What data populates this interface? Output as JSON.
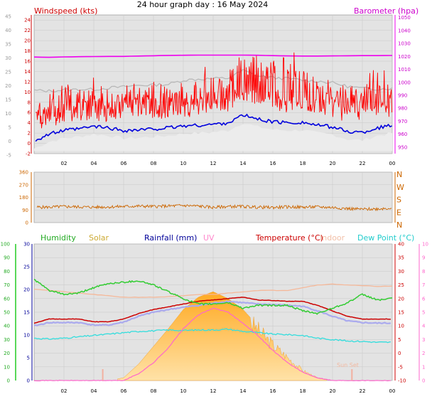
{
  "page": {
    "title": "24 hour graph day : 16 May 2024",
    "sunset_label": "Sun Set"
  },
  "x_ticks": [
    "02",
    "04",
    "06",
    "08",
    "10",
    "12",
    "14",
    "16",
    "18",
    "20",
    "22",
    "00"
  ],
  "colors": {
    "wind": "#ff0000",
    "wind_avg": "#0000dd",
    "barometer": "#ee00ee",
    "direction": "#cc6600",
    "humidity": "#33cc33",
    "solar": "#ffaa33",
    "rain": "#000099",
    "uv": "#ff66cc",
    "temp": "#cc0000",
    "indoor": "#f5b899",
    "dew": "#33dddd",
    "apparent": "#aaaaee"
  },
  "chart_data": [
    {
      "type": "line",
      "title": "24 hour graph day : 16 May 2024",
      "labels": {
        "left": "Windspeed (kts)",
        "right": "Barometer (hpa)"
      },
      "left_axis_outer_ticks": [
        "-5",
        "0",
        "5",
        "10",
        "15",
        "20",
        "25",
        "30",
        "35",
        "40",
        "45"
      ],
      "left_axis_inner_ticks": [
        "-2",
        "0",
        "2",
        "4",
        "6",
        "8",
        "10",
        "12",
        "14",
        "16",
        "18",
        "20",
        "22",
        "24"
      ],
      "right_axis_ticks": [
        "950",
        "960",
        "970",
        "980",
        "990",
        "1000",
        "1010",
        "1020",
        "1030",
        "1040",
        "1050"
      ],
      "ylim_wind": [
        -2,
        25
      ],
      "ylim_baro": [
        945,
        1052
      ],
      "x": [
        0,
        1,
        2,
        3,
        4,
        5,
        6,
        7,
        8,
        9,
        10,
        11,
        12,
        13,
        14,
        15,
        16,
        17,
        18,
        19,
        20,
        21,
        22,
        23,
        24
      ],
      "series": [
        {
          "name": "Windspeed",
          "values": [
            4,
            6,
            7,
            7,
            7,
            7,
            8,
            8,
            7,
            8,
            8,
            8,
            9,
            9,
            11,
            10,
            9,
            9,
            9,
            9,
            8,
            7,
            7,
            8,
            8
          ]
        },
        {
          "name": "Windspeed avg",
          "values": [
            0.5,
            1.8,
            2.5,
            2.8,
            3.3,
            3.0,
            2.5,
            2.6,
            2.8,
            3.0,
            3.4,
            3.5,
            3.7,
            4.0,
            5.5,
            4.7,
            4.2,
            4.0,
            4.1,
            3.5,
            3.2,
            2.3,
            2.1,
            3.0,
            3.5
          ]
        },
        {
          "name": "Gust",
          "values": [
            6,
            10,
            12,
            11,
            11,
            10,
            10,
            11,
            12,
            11,
            12,
            13,
            13,
            14,
            18,
            16,
            16,
            18,
            15,
            12,
            11,
            12,
            10,
            16,
            12
          ]
        },
        {
          "name": "Barometer",
          "values": [
            1019.5,
            1019.3,
            1019.6,
            1019.8,
            1019.9,
            1020.0,
            1020.0,
            1020.3,
            1020.5,
            1020.8,
            1020.9,
            1021.0,
            1021.0,
            1021.0,
            1021.0,
            1020.9,
            1020.6,
            1020.4,
            1020.3,
            1020.3,
            1020.4,
            1020.5,
            1020.6,
            1020.6,
            1020.7
          ]
        },
        {
          "name": "Cloud base",
          "values": [
            10.3,
            10.2,
            10.4,
            10.5,
            10.5,
            10.8,
            11.0,
            11.3,
            11.4,
            11.5,
            12.3,
            12.5,
            12.6,
            12.7,
            14.2,
            13.1,
            12.8,
            12.6,
            12.3,
            12.1,
            11.8,
            11.1,
            10.7,
            10.6,
            10.7
          ]
        }
      ]
    },
    {
      "type": "line",
      "labels": {
        "right": [
          "N",
          "W",
          "S",
          "E",
          "N"
        ]
      },
      "left_axis_ticks": [
        "0",
        "90",
        "180",
        "270",
        "360"
      ],
      "ylim": [
        0,
        360
      ],
      "x": [
        0,
        1,
        2,
        3,
        4,
        5,
        6,
        7,
        8,
        9,
        10,
        11,
        12,
        13,
        14,
        15,
        16,
        17,
        18,
        19,
        20,
        21,
        22,
        23,
        24
      ],
      "series": [
        {
          "name": "Wind direction",
          "values": [
            110,
            110,
            115,
            112,
            110,
            112,
            115,
            118,
            115,
            118,
            122,
            118,
            108,
            115,
            115,
            110,
            108,
            112,
            110,
            112,
            108,
            100,
            95,
            98,
            105
          ]
        }
      ]
    },
    {
      "type": "area",
      "labels": {
        "humidity": "Humidity",
        "solar": "Solar",
        "rainfall": "Rainfall (mm)",
        "uv": "UV",
        "temperature": "Temperature (°C)",
        "indoor": "Indoor",
        "dew_point": "Dew Point (°C)"
      },
      "humidity_axis_ticks": [
        "0",
        "10",
        "20",
        "30",
        "40",
        "50",
        "60",
        "70",
        "80",
        "90",
        "100"
      ],
      "rain_axis_ticks": [
        "0",
        "5",
        "10",
        "15",
        "20",
        "25",
        "30"
      ],
      "temp_axis_ticks": [
        "-10",
        "-5",
        "0",
        "5",
        "10",
        "15",
        "20",
        "25",
        "30",
        "35",
        "40"
      ],
      "uv_axis_ticks": [
        "0",
        "1",
        "2",
        "3",
        "4",
        "5",
        "6",
        "7",
        "8",
        "9",
        "10"
      ],
      "ylim_humidity": [
        0,
        100
      ],
      "ylim_temp": [
        -10,
        40
      ],
      "ylim_uv": [
        0,
        10
      ],
      "x": [
        0,
        1,
        2,
        3,
        4,
        5,
        6,
        7,
        8,
        9,
        10,
        11,
        12,
        13,
        14,
        15,
        16,
        17,
        18,
        19,
        20,
        21,
        22,
        23,
        24
      ],
      "series": [
        {
          "name": "Humidity",
          "values": [
            74,
            66,
            63,
            64,
            68,
            71,
            72,
            73,
            70,
            65,
            60,
            56,
            56,
            57,
            53,
            55,
            55,
            55,
            51,
            49,
            53,
            57,
            63,
            59,
            60
          ]
        },
        {
          "name": "Temperature",
          "values": [
            11,
            12.5,
            12.5,
            12.5,
            11.5,
            11.5,
            12.5,
            14.5,
            16,
            17,
            18,
            19,
            19.5,
            20,
            20.5,
            19.5,
            19.3,
            19,
            19,
            17.5,
            15.5,
            13.5,
            12.5,
            12.5,
            12.5
          ]
        },
        {
          "name": "Apparent temperature",
          "values": [
            10,
            11.2,
            11.2,
            11.2,
            10.3,
            10.3,
            11.4,
            13.5,
            15,
            16,
            16.8,
            17.5,
            18.3,
            19,
            18.5,
            18,
            17.8,
            17.5,
            17.2,
            15.5,
            13.5,
            11.8,
            11.2,
            11,
            11
          ]
        },
        {
          "name": "Dew point",
          "values": [
            5.5,
            5.2,
            5.5,
            6,
            6.5,
            7,
            7.5,
            8,
            8.2,
            8.5,
            8.3,
            8.5,
            8.5,
            8.8,
            8,
            7.5,
            7,
            6.8,
            6.5,
            5.5,
            5,
            4.5,
            4.3,
            4,
            4
          ]
        },
        {
          "name": "Indoor temperature",
          "values": [
            23.5,
            23,
            22.5,
            22,
            21.5,
            21,
            20.5,
            20.5,
            20.5,
            20.7,
            21,
            21.5,
            21.5,
            22,
            22.5,
            23,
            23,
            23,
            24,
            25,
            25.3,
            25,
            24.7,
            24.5,
            24.5
          ]
        },
        {
          "name": "Solar",
          "values": [
            0,
            0,
            0,
            0,
            0,
            0,
            2,
            12,
            25,
            38,
            52,
            61,
            65,
            60,
            52,
            40,
            28,
            18,
            8,
            2,
            0,
            0,
            0,
            0,
            0
          ]
        },
        {
          "name": "UV",
          "values": [
            0,
            0,
            0,
            0,
            0,
            0,
            0,
            0.5,
            1.3,
            2.4,
            3.8,
            4.8,
            5.3,
            5,
            4.2,
            3.3,
            2.2,
            1.3,
            0.6,
            0.2,
            0,
            0,
            0,
            0,
            0
          ]
        },
        {
          "name": "Rainfall",
          "values": [
            0,
            0,
            0,
            0,
            0,
            0,
            0,
            0,
            0,
            0,
            0,
            0,
            0,
            0,
            0,
            0,
            0,
            0,
            0,
            0,
            0,
            0,
            0,
            0,
            0
          ]
        }
      ]
    }
  ]
}
